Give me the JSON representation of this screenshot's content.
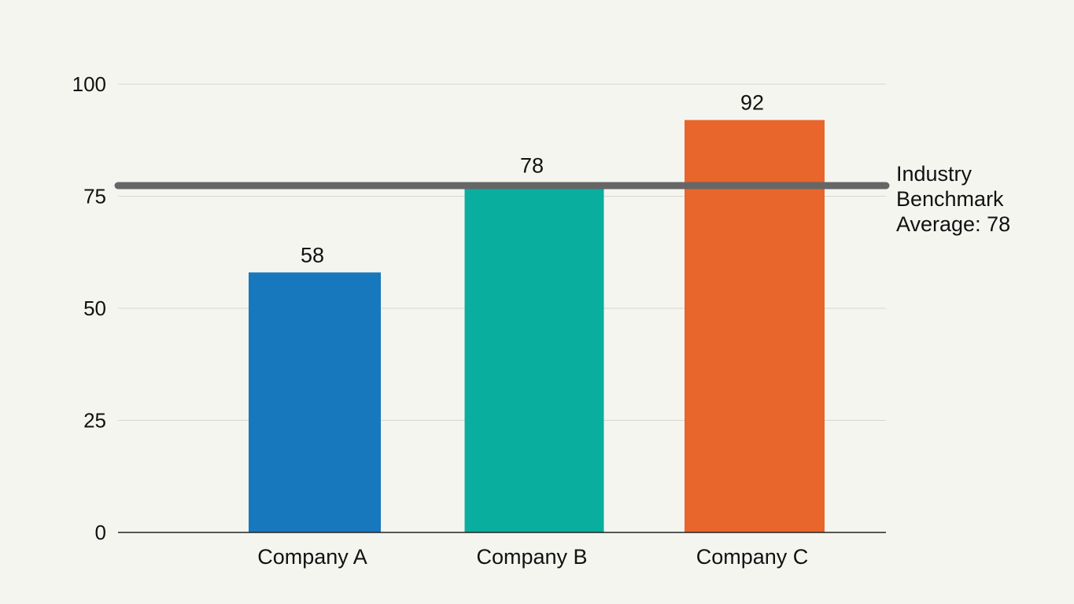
{
  "chart_data": {
    "type": "bar",
    "title": "",
    "xlabel": "",
    "ylabel": "",
    "categories": [
      "Company A",
      "Company B",
      "Company C"
    ],
    "values": [
      58,
      78,
      92
    ],
    "value_labels": [
      "58",
      "78",
      "92"
    ],
    "colors": [
      "#1878be",
      "#0aae9f",
      "#e8652b"
    ],
    "ylim": [
      0,
      100
    ],
    "yticks": [
      0,
      25,
      50,
      75,
      100
    ],
    "ytick_labels": [
      "0",
      "25",
      "50",
      "75",
      "100"
    ],
    "grid": true,
    "reference_line": {
      "value": 78,
      "color": "#666666",
      "label_lines": [
        "Industry",
        "Benchmark",
        "Average: 78"
      ]
    }
  }
}
